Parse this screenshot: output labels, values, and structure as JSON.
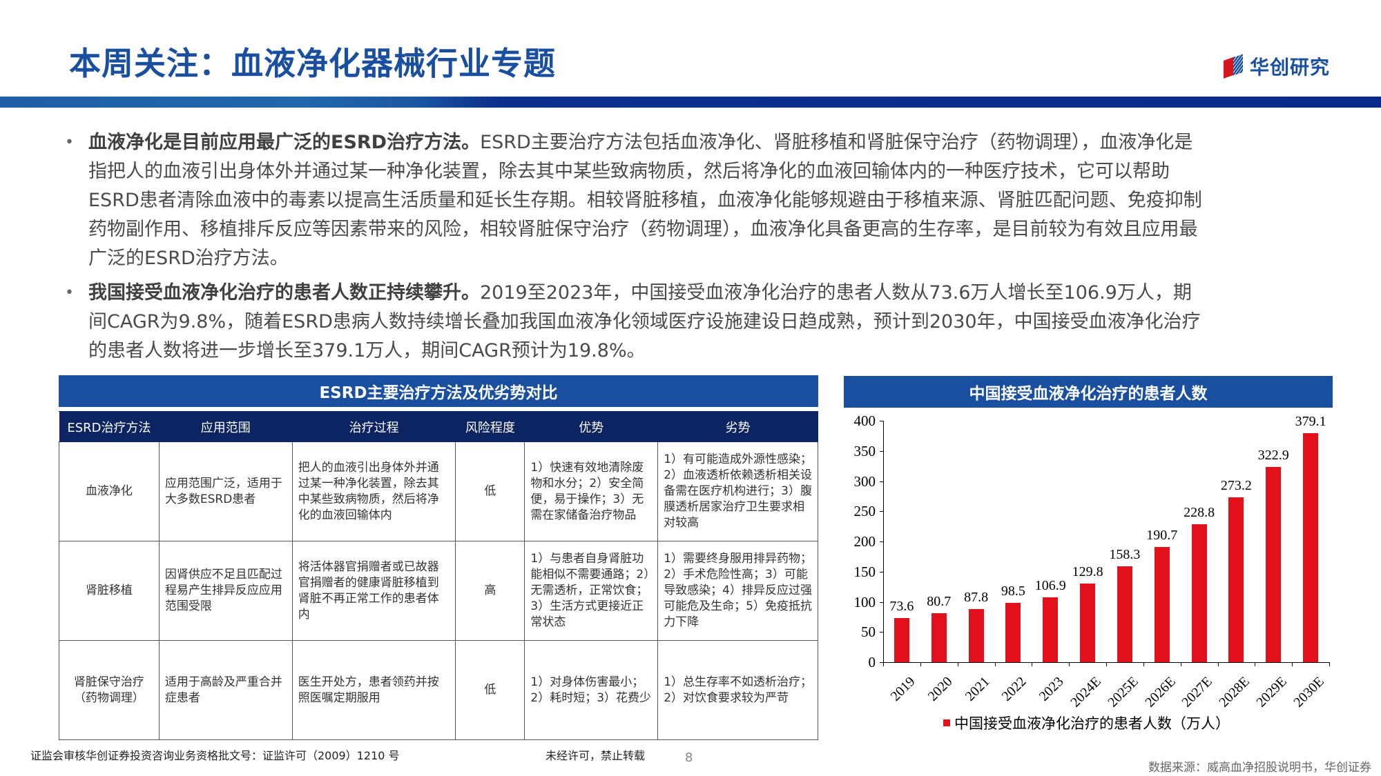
{
  "header": {
    "title": "本周关注：血液净化器械行业专题",
    "logo_text": "华创研究",
    "brand_color": "#1a4fa0",
    "accent_red": "#d7151d"
  },
  "bullets": [
    {
      "bold": "血液净化是目前应用最广泛的ESRD治疗方法。",
      "text": "ESRD主要治疗方法包括血液净化、肾脏移植和肾脏保守治疗（药物调理），血液净化是指把人的血液引出身体外并通过某一种净化装置，除去其中某些致病物质，然后将净化的血液回输体内的一种医疗技术，它可以帮助ESRD患者清除血液中的毒素以提高生活质量和延长生存期。相较肾脏移植，血液净化能够规避由于移植来源、肾脏匹配问题、免疫抑制药物副作用、移植排斥反应等因素带来的风险，相较肾脏保守治疗（药物调理），血液净化具备更高的生存率，是目前较为有效且应用最广泛的ESRD治疗方法。"
    },
    {
      "bold": "我国接受血液净化治疗的患者人数正持续攀升。",
      "text": "2019至2023年，中国接受血液净化治疗的患者人数从73.6万人增长至106.9万人，期间CAGR为9.8%，随着ESRD患病人数持续增长叠加我国血液净化领域医疗设施建设日趋成熟，预计到2030年，中国接受血液净化治疗的患者人数将进一步增长至379.1万人，期间CAGR预计为19.8%。"
    }
  ],
  "table": {
    "title": "ESRD主要治疗方法及优劣势对比",
    "headers": [
      "ESRD治疗方法",
      "应用范围",
      "治疗过程",
      "风险程度",
      "优势",
      "劣势"
    ],
    "rows": [
      {
        "method": "血液净化",
        "scope": "应用范围广泛，适用于大多数ESRD患者",
        "process": "把人的血液引出身体外并通过某一种净化装置，除去其中某些致病物质，然后将净化的血液回输体内",
        "risk": "低",
        "pros": "1）快速有效地清除废物和水分；2）安全简便，易于操作；3）无需在家储备治疗物品",
        "cons": "1）有可能造成外源性感染；2）血液透析依赖透析相关设备需在医疗机构进行；3）腹膜透析居家治疗卫生要求相对较高"
      },
      {
        "method": "肾脏移植",
        "scope": "因肾供应不足且匹配过程易产生排异反应应用范围受限",
        "process": "将活体器官捐赠者或已故器官捐赠者的健康肾脏移植到肾脏不再正常工作的患者体内",
        "risk": "高",
        "pros": "1）与患者自身肾脏功能相似不需要通路；2）无需透析，正常饮食；3）生活方式更接近正常状态",
        "cons": "1）需要终身服用排异药物；2）手术危险性高；3）可能导致感染；4）排异反应过强可能危及生命；5）免疫抵抗力下降"
      },
      {
        "method": "肾脏保守治疗（药物调理）",
        "scope": "适用于高龄及严重合并症患者",
        "process": "医生开处方，患者领药并按照医嘱定期服用",
        "risk": "低",
        "pros": "1）对身体伤害最小；2）耗时短；3）花费少",
        "cons": "1）总生存率不如透析治疗；2）对饮食要求较为严苛"
      }
    ]
  },
  "chart_data": {
    "type": "bar",
    "title": "中国接受血液净化治疗的患者人数",
    "categories": [
      "2019",
      "2020",
      "2021",
      "2022",
      "2023",
      "2024E",
      "2025E",
      "2026E",
      "2027E",
      "2028E",
      "2029E",
      "2030E"
    ],
    "series": [
      {
        "name": "中国接受血液净化治疗的患者人数（万人）",
        "color": "#e3111b",
        "values": [
          73.6,
          80.7,
          87.8,
          98.5,
          106.9,
          129.8,
          158.3,
          190.7,
          228.8,
          273.2,
          322.9,
          379.1
        ]
      }
    ],
    "value_labels": [
      "73.6",
      "80.7",
      "87.8",
      "98.5",
      "106.9",
      "129.8",
      "158.3",
      "190.7",
      "228.8",
      "273.2",
      "322.9",
      "379.1"
    ],
    "xlabel": "",
    "ylabel": "",
    "ylim": [
      0,
      400
    ],
    "yticks": [
      "400",
      "350",
      "300",
      "250",
      "200",
      "150",
      "100",
      "50",
      "0"
    ],
    "grid": false,
    "legend_position": "bottom",
    "legend_label": "中国接受血液净化治疗的患者人数（万人）"
  },
  "footer": {
    "license": "证监会审核华创证券投资咨询业务资格批文号：证监许可（2009）1210 号",
    "notice": "未经许可，禁止转载",
    "page_number": "8",
    "source": "数据来源：威高血净招股说明书，华创证券"
  }
}
